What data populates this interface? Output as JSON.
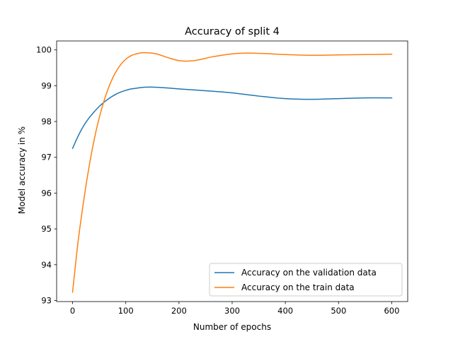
{
  "chart_data": {
    "type": "line",
    "title": "Accuracy of split 4",
    "xlabel": "Number of epochs",
    "ylabel": "Model accuracy in %",
    "xlim": [
      -30,
      630
    ],
    "ylim": [
      92.97,
      100.25
    ],
    "xticks": [
      0,
      100,
      200,
      300,
      400,
      500,
      600
    ],
    "yticks": [
      93,
      94,
      95,
      96,
      97,
      98,
      99,
      100
    ],
    "grid": false,
    "legend_position": "lower-right",
    "series": [
      {
        "name": "Accuracy on the validation data",
        "color": "#1f77b4",
        "x": [
          0,
          10,
          20,
          30,
          40,
          50,
          60,
          70,
          80,
          90,
          100,
          110,
          120,
          130,
          140,
          150,
          175,
          200,
          250,
          300,
          350,
          400,
          450,
          500,
          550,
          600
        ],
        "y": [
          97.25,
          97.58,
          97.86,
          98.08,
          98.26,
          98.42,
          98.55,
          98.66,
          98.75,
          98.82,
          98.87,
          98.91,
          98.93,
          98.95,
          98.96,
          98.96,
          98.94,
          98.91,
          98.86,
          98.8,
          98.71,
          98.64,
          98.62,
          98.64,
          98.66,
          98.66
        ]
      },
      {
        "name": "Accuracy on the train data",
        "color": "#ff7f0e",
        "x": [
          0,
          10,
          20,
          30,
          40,
          50,
          60,
          70,
          80,
          90,
          100,
          110,
          120,
          130,
          140,
          150,
          160,
          180,
          200,
          220,
          240,
          260,
          280,
          300,
          320,
          340,
          360,
          400,
          450,
          500,
          550,
          600
        ],
        "y": [
          93.23,
          94.6,
          95.7,
          96.65,
          97.45,
          98.1,
          98.62,
          99.03,
          99.35,
          99.58,
          99.74,
          99.84,
          99.89,
          99.92,
          99.92,
          99.91,
          99.88,
          99.78,
          99.7,
          99.69,
          99.73,
          99.8,
          99.85,
          99.89,
          99.91,
          99.91,
          99.9,
          99.87,
          99.85,
          99.86,
          99.87,
          99.88
        ]
      }
    ]
  }
}
